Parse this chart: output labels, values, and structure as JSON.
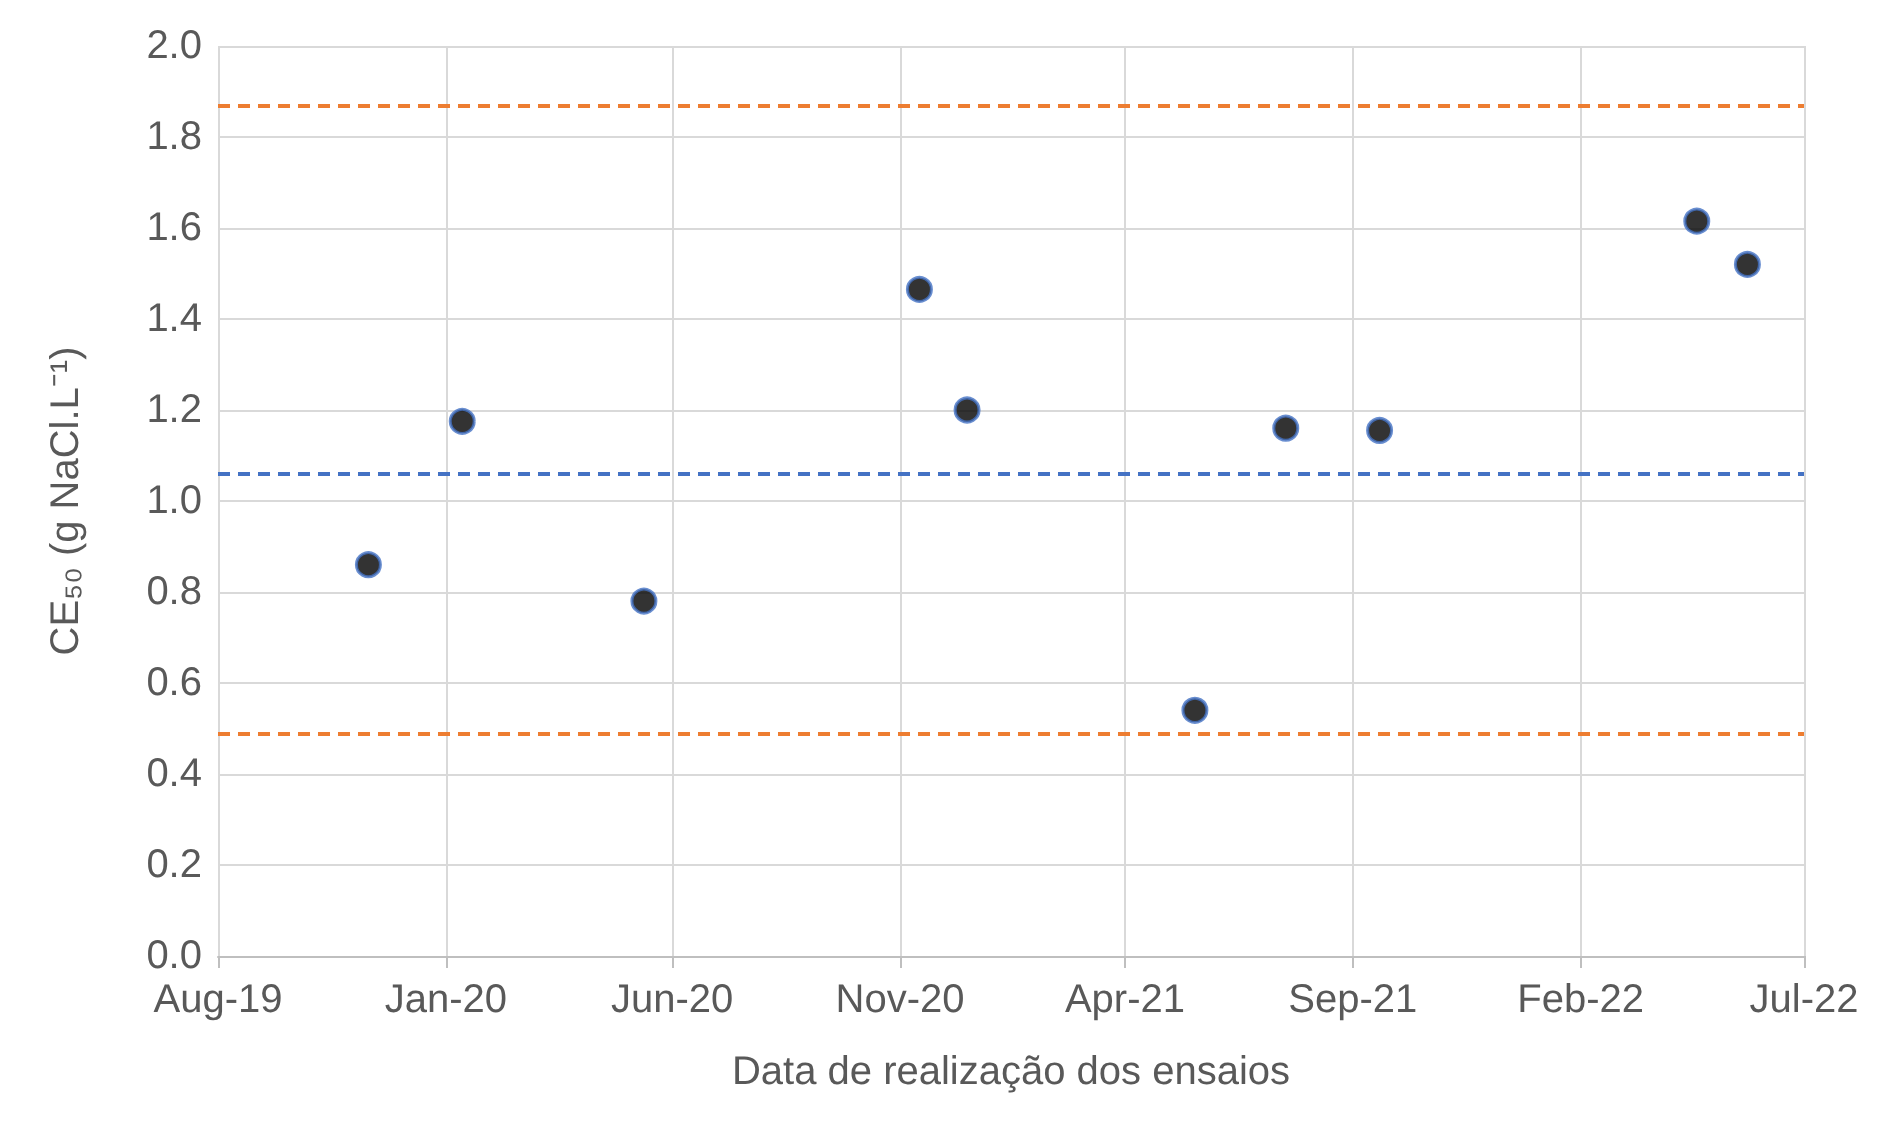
{
  "chart_data": {
    "type": "scatter",
    "xlabel": "Data de realização dos ensaios",
    "ylabel": "CE₅₀ (g NaCl.L⁻¹)",
    "x": [
      "2019-11-10",
      "2020-01-12",
      "2020-05-13",
      "2020-11-14",
      "2020-12-16",
      "2021-05-18",
      "2021-07-18",
      "2021-09-19",
      "2022-04-20",
      "2022-05-24"
    ],
    "series": [
      {
        "color": "#000000",
        "values": [
          0.86,
          1.175,
          0.78,
          1.465,
          1.2,
          0.54,
          1.16,
          1.155,
          1.615,
          1.52
        ]
      }
    ],
    "xlim": [
      "2019-08-01",
      "2022-07-01"
    ],
    "xticks": [
      {
        "value": "2019-08-01",
        "label": "Aug-19"
      },
      {
        "value": "2020-01-01",
        "label": "Jan-20"
      },
      {
        "value": "2020-06-01",
        "label": "Jun-20"
      },
      {
        "value": "2020-11-01",
        "label": "Nov-20"
      },
      {
        "value": "2021-04-01",
        "label": "Apr-21"
      },
      {
        "value": "2021-09-01",
        "label": "Sep-21"
      },
      {
        "value": "2022-02-01",
        "label": "Feb-22"
      },
      {
        "value": "2022-07-01",
        "label": "Jul-22"
      }
    ],
    "ylim": [
      0,
      2
    ],
    "yticks": [
      {
        "value": 0,
        "label": "0.0"
      },
      0.2,
      0.4,
      0.6,
      0.8,
      {
        "value": 1,
        "label": "1.0"
      },
      1.2,
      1.4,
      1.6,
      1.8,
      {
        "value": 2,
        "label": "2.0"
      }
    ],
    "ref_lines": [
      {
        "axis": "y",
        "value": 1.87,
        "color": "#ed7d31",
        "line_style": "dashed"
      },
      {
        "axis": "y",
        "value": 1.06,
        "color": "#4472c4",
        "line_style": "dashed"
      },
      {
        "axis": "y",
        "value": 0.49,
        "color": "#ed7d31",
        "line_style": "dashed"
      }
    ],
    "grid": true,
    "marker": "circle"
  }
}
